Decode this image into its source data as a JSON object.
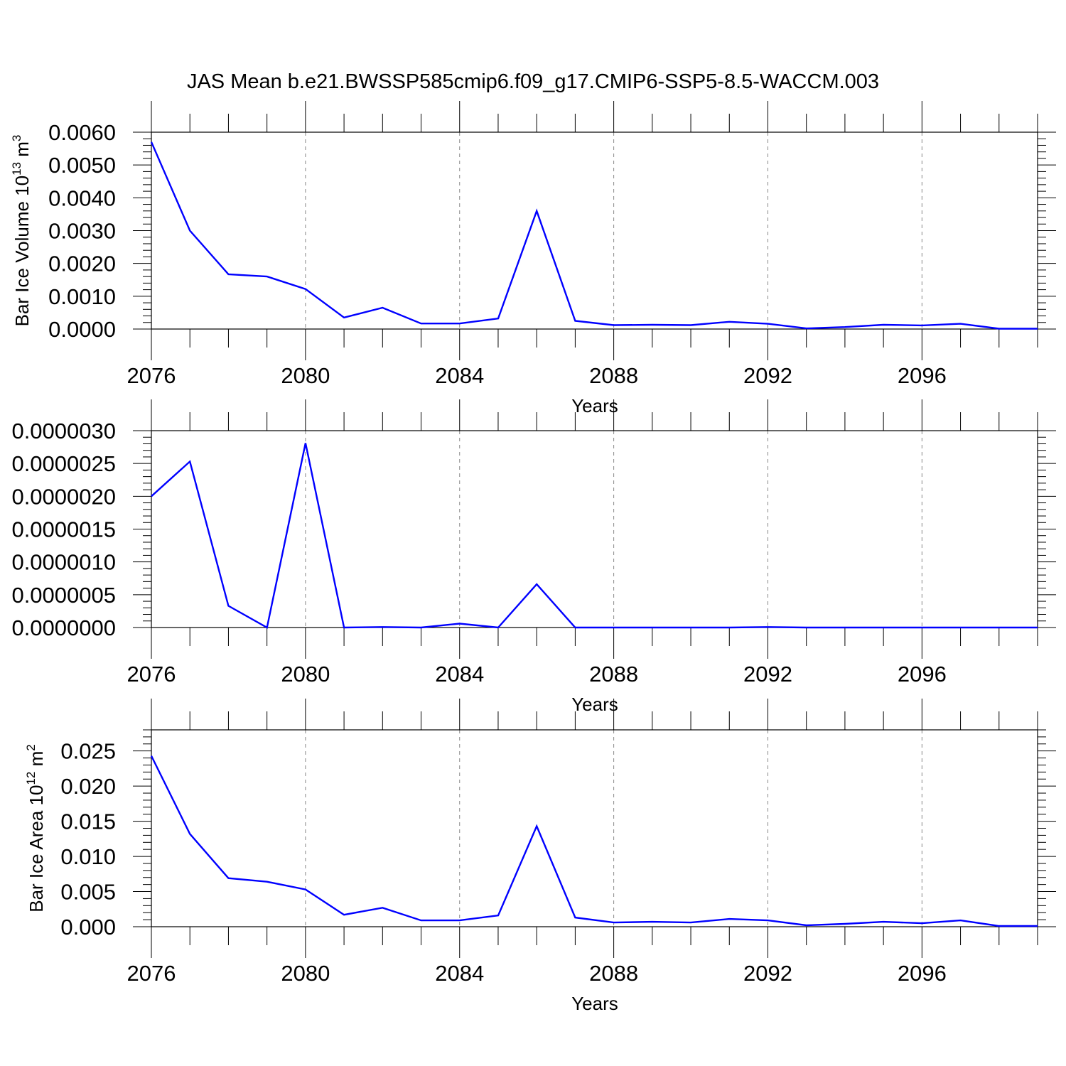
{
  "title": "JAS Mean b.e21.BWSSP585cmip6.f09_g17.CMIP6-SSP5-8.5-WACCM.003",
  "colors": {
    "series": "#0000ff",
    "grid": "#888888",
    "axis": "#000000"
  },
  "chart_data": [
    {
      "type": "line",
      "ylabel_main": "Bar Ice Volume 10",
      "ylabel_sup": "13",
      "ylabel_unit": " m",
      "ylabel_unit_sup": "3",
      "xlabel": "Years",
      "xlim": [
        2076,
        2099
      ],
      "ylim": [
        0,
        0.006
      ],
      "yticks": [
        0,
        0.001,
        0.002,
        0.003,
        0.004,
        0.005,
        0.006
      ],
      "ytick_labels": [
        "0.0000",
        "0.0010",
        "0.0020",
        "0.0030",
        "0.0040",
        "0.0050",
        "0.0060"
      ],
      "xticks": [
        2076,
        2080,
        2084,
        2088,
        2092,
        2096
      ],
      "x": [
        2076,
        2077,
        2078,
        2079,
        2080,
        2081,
        2082,
        2083,
        2084,
        2085,
        2086,
        2087,
        2088,
        2089,
        2090,
        2091,
        2092,
        2093,
        2094,
        2095,
        2096,
        2097,
        2098,
        2099
      ],
      "series": [
        {
          "name": "volume",
          "values": [
            0.0057,
            0.003,
            0.00167,
            0.0016,
            0.00122,
            0.00035,
            0.00065,
            0.00017,
            0.00017,
            0.00032,
            0.0036,
            0.00025,
            0.00012,
            0.00013,
            0.00012,
            0.00022,
            0.00016,
            2e-05,
            6e-05,
            0.00013,
            0.00011,
            0.00016,
            1e-05,
            1e-05
          ]
        }
      ]
    },
    {
      "type": "line",
      "ylabel_main": "",
      "ylabel_sup": "",
      "ylabel_unit": "",
      "ylabel_unit_sup": "",
      "xlabel": "Years",
      "xlim": [
        2076,
        2099
      ],
      "ylim": [
        0,
        3e-06
      ],
      "yticks": [
        0,
        5e-07,
        1e-06,
        1.5e-06,
        2e-06,
        2.5e-06,
        3e-06
      ],
      "ytick_labels": [
        "0.0000000",
        "0.0000005",
        "0.0000010",
        "0.0000015",
        "0.0000020",
        "0.0000025",
        "0.0000030"
      ],
      "xticks": [
        2076,
        2080,
        2084,
        2088,
        2092,
        2096
      ],
      "x": [
        2076,
        2077,
        2078,
        2079,
        2080,
        2081,
        2082,
        2083,
        2084,
        2085,
        2086,
        2087,
        2088,
        2089,
        2090,
        2091,
        2092,
        2093,
        2094,
        2095,
        2096,
        2097,
        2098,
        2099
      ],
      "series": [
        {
          "name": "series-2",
          "values": [
            2e-06,
            2.53e-06,
            3.3e-07,
            0.0,
            2.81e-06,
            0.0,
            8e-09,
            0.0,
            6e-08,
            0.0,
            6.6e-07,
            0.0,
            0.0,
            0.0,
            0.0,
            0.0,
            8e-09,
            0.0,
            0.0,
            0.0,
            0.0,
            0.0,
            0.0,
            0.0
          ]
        }
      ]
    },
    {
      "type": "line",
      "ylabel_main": "Bar Ice Area 10",
      "ylabel_sup": "12",
      "ylabel_unit": " m",
      "ylabel_unit_sup": "2",
      "xlabel": "Years",
      "xlim": [
        2076,
        2099
      ],
      "ylim": [
        0,
        0.028
      ],
      "yticks": [
        0,
        0.005,
        0.01,
        0.015,
        0.02,
        0.025
      ],
      "ytick_labels": [
        "0.000",
        "0.005",
        "0.010",
        "0.015",
        "0.020",
        "0.025"
      ],
      "xticks": [
        2076,
        2080,
        2084,
        2088,
        2092,
        2096
      ],
      "x": [
        2076,
        2077,
        2078,
        2079,
        2080,
        2081,
        2082,
        2083,
        2084,
        2085,
        2086,
        2087,
        2088,
        2089,
        2090,
        2091,
        2092,
        2093,
        2094,
        2095,
        2096,
        2097,
        2098,
        2099
      ],
      "series": [
        {
          "name": "area",
          "values": [
            0.0243,
            0.0132,
            0.0069,
            0.0064,
            0.0053,
            0.0017,
            0.0027,
            0.0009,
            0.0009,
            0.0016,
            0.0143,
            0.0013,
            0.0006,
            0.0007,
            0.0006,
            0.0011,
            0.0009,
            0.0002,
            0.0004,
            0.0007,
            0.0005,
            0.0009,
            0.0001,
            0.0001
          ]
        }
      ]
    }
  ]
}
